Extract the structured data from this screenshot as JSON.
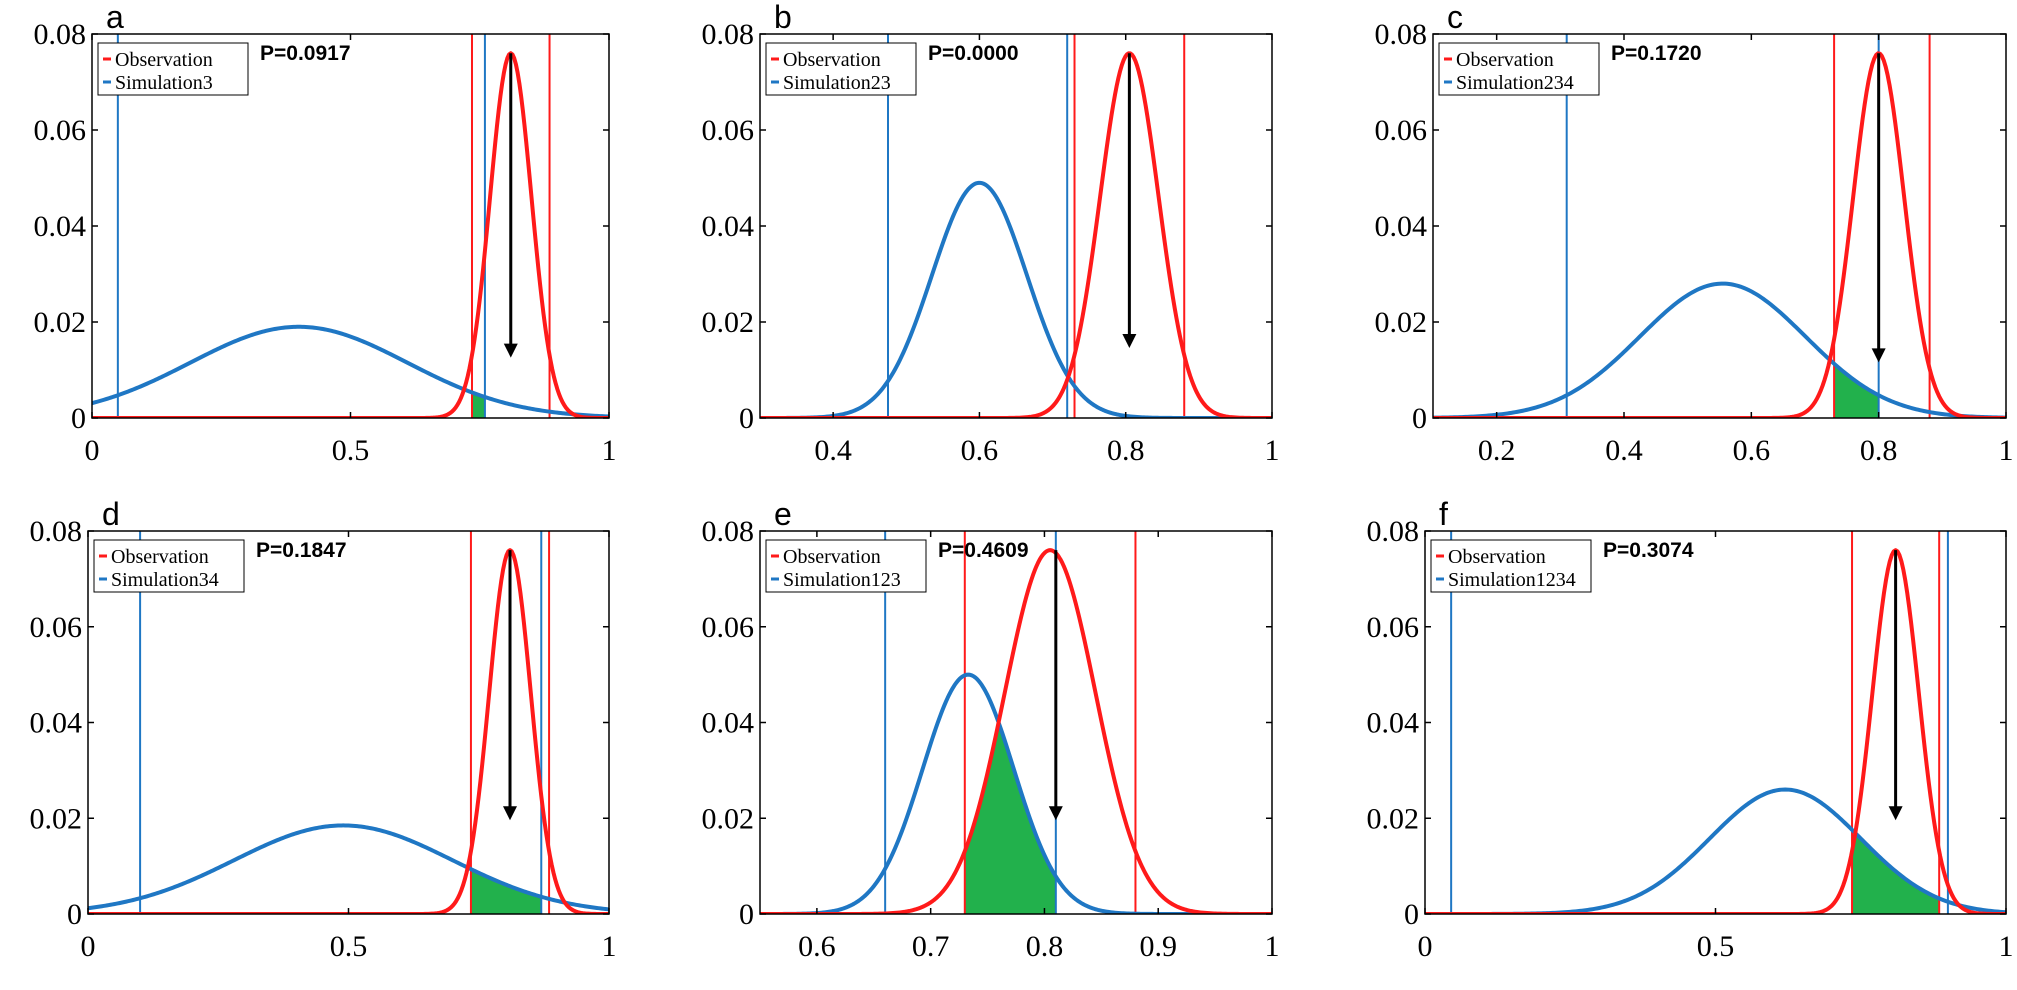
{
  "colors": {
    "observation": "#ff1a1a",
    "simulation": "#1f77c4",
    "overlap": "#22b14c",
    "arrow": "#000000",
    "axis": "#000000"
  },
  "chart_data": [
    {
      "type": "line",
      "panel": "a",
      "legend": [
        "Observation",
        "Simulation3"
      ],
      "p_label": "P=0.0917",
      "xlim": [
        0,
        1
      ],
      "ylim": [
        0,
        0.08
      ],
      "xticks": [
        0,
        0.5,
        1
      ],
      "xtick_labels": [
        "0",
        "0.5",
        "1"
      ],
      "yticks": [
        0,
        0.02,
        0.04,
        0.06,
        0.08
      ],
      "ytick_labels": [
        "0",
        "0.02",
        "0.04",
        "0.06",
        "0.08"
      ],
      "series": [
        {
          "name": "Observation",
          "mean": 0.81,
          "peak": 0.076,
          "sd": 0.04,
          "vlines": [
            0.735,
            0.885
          ]
        },
        {
          "name": "Simulation3",
          "mean": 0.4,
          "peak": 0.019,
          "sd": 0.21,
          "vlines": [
            0.05,
            0.76
          ]
        }
      ],
      "shade": [
        0.735,
        0.76
      ],
      "arrow": {
        "x": 0.81,
        "y_from": 0.076,
        "y_to": 0.013
      }
    },
    {
      "type": "line",
      "panel": "b",
      "legend": [
        "Observation",
        "Simulation23"
      ],
      "p_label": "P=0.0000",
      "xlim": [
        0.3,
        1
      ],
      "ylim": [
        0,
        0.08
      ],
      "xticks": [
        0.4,
        0.6,
        0.8,
        1
      ],
      "xtick_labels": [
        "0.4",
        "0.6",
        "0.8",
        "1"
      ],
      "yticks": [
        0,
        0.02,
        0.04,
        0.06,
        0.08
      ],
      "ytick_labels": [
        "0",
        "0.02",
        "0.04",
        "0.06",
        "0.08"
      ],
      "series": [
        {
          "name": "Observation",
          "mean": 0.805,
          "peak": 0.076,
          "sd": 0.04,
          "vlines": [
            0.73,
            0.88
          ]
        },
        {
          "name": "Simulation23",
          "mean": 0.6,
          "peak": 0.049,
          "sd": 0.065,
          "vlines": [
            0.475,
            0.72
          ]
        }
      ],
      "shade": null,
      "arrow": {
        "x": 0.805,
        "y_from": 0.076,
        "y_to": 0.015
      }
    },
    {
      "type": "line",
      "panel": "c",
      "legend": [
        "Observation",
        "Simulation234"
      ],
      "p_label": "P=0.1720",
      "xlim": [
        0.1,
        1
      ],
      "ylim": [
        0,
        0.08
      ],
      "xticks": [
        0.2,
        0.4,
        0.6,
        0.8,
        1
      ],
      "xtick_labels": [
        "0.2",
        "0.4",
        "0.6",
        "0.8",
        "1"
      ],
      "yticks": [
        0,
        0.02,
        0.04,
        0.06,
        0.08
      ],
      "ytick_labels": [
        "0",
        "0.02",
        "0.04",
        "0.06",
        "0.08"
      ],
      "series": [
        {
          "name": "Observation",
          "mean": 0.8,
          "peak": 0.076,
          "sd": 0.04,
          "vlines": [
            0.73,
            0.88
          ]
        },
        {
          "name": "Simulation234",
          "mean": 0.555,
          "peak": 0.028,
          "sd": 0.13,
          "vlines": [
            0.31,
            0.8
          ]
        }
      ],
      "shade": [
        0.73,
        0.8
      ],
      "arrow": {
        "x": 0.8,
        "y_from": 0.076,
        "y_to": 0.012
      }
    },
    {
      "type": "line",
      "panel": "d",
      "legend": [
        "Observation",
        "Simulation34"
      ],
      "p_label": "P=0.1847",
      "xlim": [
        0,
        1
      ],
      "ylim": [
        0,
        0.08
      ],
      "xticks": [
        0,
        0.5,
        1
      ],
      "xtick_labels": [
        "0",
        "0.5",
        "1"
      ],
      "yticks": [
        0,
        0.02,
        0.04,
        0.06,
        0.08
      ],
      "ytick_labels": [
        "0",
        "0.02",
        "0.04",
        "0.06",
        "0.08"
      ],
      "series": [
        {
          "name": "Observation",
          "mean": 0.81,
          "peak": 0.076,
          "sd": 0.04,
          "vlines": [
            0.735,
            0.885
          ]
        },
        {
          "name": "Simulation34",
          "mean": 0.49,
          "peak": 0.0185,
          "sd": 0.21,
          "vlines": [
            0.1,
            0.87
          ]
        }
      ],
      "shade": [
        0.735,
        0.87
      ],
      "arrow": {
        "x": 0.81,
        "y_from": 0.076,
        "y_to": 0.02
      }
    },
    {
      "type": "line",
      "panel": "e",
      "legend": [
        "Observation",
        "Simulation123"
      ],
      "p_label": "P=0.4609",
      "xlim": [
        0.55,
        1
      ],
      "ylim": [
        0,
        0.08
      ],
      "xticks": [
        0.6,
        0.7,
        0.8,
        0.9,
        1
      ],
      "xtick_labels": [
        "0.6",
        "0.7",
        "0.8",
        "0.9",
        "1"
      ],
      "yticks": [
        0,
        0.02,
        0.04,
        0.06,
        0.08
      ],
      "ytick_labels": [
        "0",
        "0.02",
        "0.04",
        "0.06",
        "0.08"
      ],
      "series": [
        {
          "name": "Observation",
          "mean": 0.805,
          "peak": 0.076,
          "sd": 0.04,
          "vlines": [
            0.73,
            0.88
          ]
        },
        {
          "name": "Simulation123",
          "mean": 0.733,
          "peak": 0.05,
          "sd": 0.04,
          "vlines": [
            0.66,
            0.81
          ]
        }
      ],
      "shade": [
        0.73,
        0.81
      ],
      "arrow": {
        "x": 0.81,
        "y_from": 0.076,
        "y_to": 0.02
      }
    },
    {
      "type": "line",
      "panel": "f",
      "legend": [
        "Observation",
        "Simulation1234"
      ],
      "p_label": "P=0.3074",
      "xlim": [
        0,
        1
      ],
      "ylim": [
        0,
        0.08
      ],
      "xticks": [
        0,
        0.5,
        1
      ],
      "xtick_labels": [
        "0",
        "0.5",
        "1"
      ],
      "yticks": [
        0,
        0.02,
        0.04,
        0.06,
        0.08
      ],
      "ytick_labels": [
        "0",
        "0.02",
        "0.04",
        "0.06",
        "0.08"
      ],
      "series": [
        {
          "name": "Observation",
          "mean": 0.81,
          "peak": 0.076,
          "sd": 0.04,
          "vlines": [
            0.735,
            0.885
          ]
        },
        {
          "name": "Simulation1234",
          "mean": 0.62,
          "peak": 0.026,
          "sd": 0.13,
          "vlines": [
            0.045,
            0.9
          ]
        }
      ],
      "shade": [
        0.735,
        0.885
      ],
      "arrow": {
        "x": 0.81,
        "y_from": 0.076,
        "y_to": 0.02
      }
    }
  ]
}
